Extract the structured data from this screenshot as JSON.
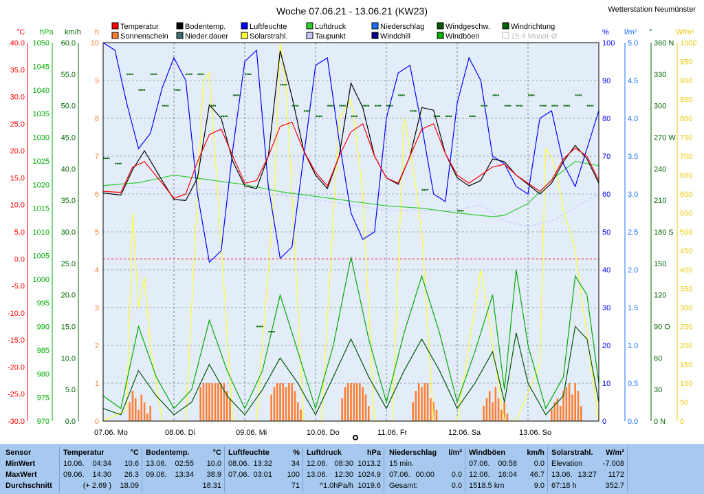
{
  "title": "Woche 07.06.21 - 13.06.21 (KW23)",
  "station": "Wetterstation Neumünster",
  "legend": [
    {
      "label": "Temperatur",
      "color": "#ff0000"
    },
    {
      "label": "Sonnenschein",
      "color": "#ff7f32"
    },
    {
      "label": "Bodentemp.",
      "color": "#000000"
    },
    {
      "label": "Nieder.dauer",
      "color": "#3b6b6b"
    },
    {
      "label": "Luftfeuchte",
      "color": "#0000ff"
    },
    {
      "label": "Solarstrahl.",
      "color": "#ffff33"
    },
    {
      "label": "Luftdruck",
      "color": "#33cc33"
    },
    {
      "label": "Taupunkt",
      "color": "#c8c8ff"
    },
    {
      "label": "Niederschlag",
      "color": "#1e6eff"
    },
    {
      "label": "Windchill",
      "color": "#00008b"
    },
    {
      "label": "Windgeschw.",
      "color": "#005500"
    },
    {
      "label": "Windböen",
      "color": "#00aa00"
    },
    {
      "label": "Windrichtung",
      "color": "#006600"
    },
    {
      "label": "15.4 Monat-Ø",
      "color": "#cccccc",
      "disabled": true
    }
  ],
  "axes": {
    "temp": {
      "unit": "°C",
      "color": "#ff0000",
      "ticks": [
        "40.0",
        "35.0",
        "30.0",
        "25.0",
        "20.0",
        "15.0",
        "10.0",
        "5.0",
        "0.0",
        "-5.0",
        "-10.0",
        "-15.0",
        "-20.0",
        "-25.0",
        "-30.0"
      ]
    },
    "hpa": {
      "unit": "hPa",
      "color": "#00aa00",
      "ticks": [
        "1050",
        "1045",
        "1040",
        "1035",
        "1030",
        "1025",
        "1020",
        "1015",
        "1010",
        "1005",
        "1000",
        "995",
        "990",
        "985",
        "980",
        "975",
        "970"
      ]
    },
    "kmh": {
      "unit": "km/h",
      "color": "#006600",
      "ticks": [
        "60.0",
        "55.0",
        "50.0",
        "45.0",
        "40.0",
        "35.0",
        "30.0",
        "25.0",
        "20.0",
        "15.0",
        "10.0",
        "5.0",
        "0.0"
      ]
    },
    "h": {
      "unit": "h",
      "color": "#ff7f32",
      "ticks": [
        "10",
        "9",
        "8",
        "7",
        "6",
        "5",
        "4",
        "3",
        "2",
        "1",
        "0"
      ]
    },
    "pct": {
      "unit": "%",
      "color": "#0000ff",
      "ticks": [
        "100",
        "90",
        "80",
        "70",
        "60",
        "50",
        "40",
        "30",
        "20",
        "10",
        "0"
      ]
    },
    "lm2": {
      "unit": "l/m²",
      "color": "#1e6eff",
      "ticks": [
        "5.0",
        "4.5",
        "4.0",
        "3.5",
        "3.0",
        "2.5",
        "2.0",
        "1.5",
        "1.0",
        "0.5",
        "0.0"
      ]
    },
    "deg": {
      "unit": "°",
      "color": "#006600",
      "ticks": [
        "360 N",
        "330",
        "300",
        "270 W",
        "240",
        "210",
        "180 S",
        "150",
        "120",
        "90 O",
        "60",
        "30",
        "0 N"
      ]
    },
    "wm2": {
      "unit": "W/m²",
      "color": "#e6c800",
      "ticks": [
        "1000",
        "950",
        "900",
        "850",
        "800",
        "750",
        "700",
        "650",
        "600",
        "550",
        "500",
        "450",
        "400",
        "350",
        "300",
        "250",
        "200",
        "150",
        "100",
        "50",
        "0"
      ]
    }
  },
  "x_labels": [
    "07.06. Mo",
    "08.06. Di",
    "09.06. Mi",
    "10.06. Do",
    "11.06. Fr",
    "12.06. Sa",
    "13.06. So"
  ],
  "chart_data": {
    "type": "line",
    "title": "Woche 07.06.21 - 13.06.21 (KW23)",
    "x_unit": "hours since 07.06. 00:00",
    "x_range": [
      0,
      168
    ],
    "series": [
      {
        "name": "Temperatur",
        "unit": "°C",
        "color": "#ff0000",
        "x": [
          0,
          6,
          10,
          14,
          20,
          24,
          28,
          32,
          36,
          40,
          44,
          48,
          52,
          56,
          60,
          64,
          68,
          72,
          76,
          80,
          84,
          88,
          92,
          96,
          100,
          104,
          108,
          112,
          116,
          120,
          124,
          128,
          132,
          136,
          140,
          144,
          148,
          152,
          156,
          160,
          164,
          168
        ],
        "y": [
          12.5,
          12.3,
          17,
          18,
          14,
          11.2,
          12,
          18,
          23,
          24,
          19,
          14,
          14.5,
          19,
          24.5,
          25.3,
          20,
          16,
          13.5,
          19,
          23.5,
          25,
          19,
          15,
          14,
          19,
          24,
          25,
          19.5,
          15.5,
          14,
          15.5,
          17,
          17.5,
          15.5,
          14,
          12.5,
          14.5,
          18.5,
          20.5,
          19,
          14.5
        ]
      },
      {
        "name": "Bodentemp.",
        "unit": "°C",
        "color": "#000000",
        "x": [
          0,
          6,
          10,
          14,
          20,
          24,
          28,
          32,
          36,
          40,
          44,
          48,
          52,
          56,
          60,
          64,
          68,
          72,
          76,
          80,
          84,
          88,
          92,
          96,
          100,
          104,
          108,
          112,
          116,
          120,
          124,
          128,
          132,
          136,
          140,
          144,
          148,
          152,
          156,
          160,
          164,
          168
        ],
        "y": [
          12.2,
          11.8,
          16.5,
          20,
          14.5,
          11,
          10.8,
          15,
          28.5,
          26,
          18,
          13.5,
          13,
          19,
          38.5,
          30,
          20,
          15.5,
          13,
          19,
          32.5,
          28,
          19,
          15,
          13.8,
          19,
          28,
          27.5,
          19.5,
          15,
          13.5,
          14.5,
          18.5,
          18,
          15.5,
          13.8,
          12,
          14,
          18,
          21,
          18.5,
          14
        ]
      },
      {
        "name": "Luftfeuchte",
        "unit": "%",
        "color": "#0000ff",
        "x": [
          0,
          4,
          8,
          12,
          16,
          20,
          24,
          28,
          32,
          36,
          40,
          44,
          48,
          52,
          56,
          60,
          64,
          68,
          72,
          76,
          80,
          84,
          88,
          92,
          96,
          100,
          104,
          108,
          112,
          116,
          120,
          124,
          128,
          132,
          136,
          140,
          144,
          148,
          152,
          156,
          160,
          164,
          168
        ],
        "y": [
          100,
          98,
          84,
          72,
          76,
          88,
          96,
          90,
          60,
          42,
          45,
          72,
          95,
          98,
          62,
          43,
          46,
          70,
          94,
          96,
          74,
          55,
          48,
          50,
          80,
          92,
          94,
          78,
          60,
          58,
          84,
          96,
          90,
          70,
          68,
          62,
          60,
          80,
          82,
          68,
          62,
          72,
          82
        ]
      },
      {
        "name": "Luftdruck",
        "unit": "hPa",
        "color": "#33cc33",
        "x": [
          0,
          12,
          24,
          36,
          48,
          60,
          72,
          84,
          96,
          108,
          120,
          132,
          136,
          144,
          152,
          160,
          168
        ],
        "y": [
          1019.8,
          1020.4,
          1022,
          1021,
          1020,
          1018.5,
          1017.5,
          1016.5,
          1015.5,
          1015,
          1014,
          1013.2,
          1013.5,
          1016,
          1021,
          1024.9,
          1024
        ]
      },
      {
        "name": "Taupunkt",
        "unit": "°C",
        "color": "#c8c8ff",
        "x": [
          0,
          24,
          48,
          72,
          96,
          120,
          128,
          136,
          144,
          152,
          168
        ],
        "y": [
          13.5,
          13,
          12.5,
          11,
          9,
          9,
          10,
          7,
          6,
          7,
          12
        ]
      },
      {
        "name": "Windgeschw.",
        "unit": "km/h",
        "color": "#005500",
        "x": [
          0,
          6,
          12,
          18,
          24,
          30,
          36,
          42,
          48,
          54,
          60,
          66,
          72,
          78,
          84,
          90,
          96,
          102,
          108,
          114,
          120,
          126,
          132,
          136,
          140,
          144,
          150,
          156,
          160,
          164,
          168
        ],
        "y": [
          2,
          1,
          8,
          4,
          1,
          3,
          9,
          4,
          1,
          5,
          10,
          6,
          1,
          7,
          13,
          7,
          2,
          8,
          13,
          8,
          2,
          6,
          11,
          3,
          14,
          6,
          1,
          4,
          15,
          13,
          3
        ]
      },
      {
        "name": "Windböen",
        "unit": "km/h",
        "color": "#00aa00",
        "x": [
          0,
          6,
          12,
          18,
          24,
          30,
          36,
          42,
          48,
          54,
          60,
          66,
          72,
          78,
          84,
          90,
          96,
          102,
          108,
          114,
          120,
          126,
          132,
          136,
          140,
          144,
          150,
          156,
          160,
          164,
          168
        ],
        "y": [
          4,
          2,
          15,
          7,
          2,
          5,
          16,
          8,
          2,
          8,
          20,
          11,
          2,
          12,
          26,
          13,
          3,
          14,
          23,
          14,
          3,
          11,
          20,
          5,
          24,
          12,
          2,
          7,
          23,
          20,
          6
        ]
      },
      {
        "name": "Solarstrahl.",
        "unit": "W/m²",
        "color": "#ffff33",
        "x": [
          0,
          8,
          10,
          12,
          14,
          16,
          20,
          28,
          34,
          36,
          38,
          44,
          52,
          58,
          60,
          62,
          64,
          68,
          74,
          80,
          84,
          86,
          88,
          92,
          98,
          102,
          104,
          106,
          108,
          112,
          120,
          126,
          128,
          130,
          132,
          136,
          140,
          148,
          150,
          152,
          154,
          156,
          160,
          168
        ],
        "y": [
          0,
          30,
          550,
          300,
          380,
          200,
          0,
          0,
          900,
          920,
          700,
          0,
          0,
          600,
          1000,
          880,
          600,
          0,
          0,
          800,
          850,
          740,
          600,
          0,
          0,
          800,
          720,
          620,
          500,
          0,
          0,
          300,
          400,
          310,
          200,
          0,
          0,
          150,
          720,
          700,
          640,
          560,
          450,
          0
        ]
      },
      {
        "name": "Windrichtung",
        "unit": "°",
        "color": "#006600",
        "style": "dots",
        "x": [
          0,
          4,
          8,
          12,
          16,
          20,
          24,
          28,
          32,
          36,
          40,
          44,
          48,
          52,
          56,
          60,
          64,
          68,
          72,
          76,
          80,
          84,
          88,
          92,
          96,
          100,
          104,
          108,
          112,
          116,
          120,
          124,
          128,
          132,
          136,
          140,
          144,
          148,
          152,
          156,
          160,
          164,
          168
        ],
        "y": [
          250,
          245,
          330,
          315,
          330,
          300,
          315,
          330,
          330,
          300,
          290,
          310,
          330,
          90,
          85,
          320,
          300,
          295,
          290,
          300,
          300,
          290,
          300,
          300,
          300,
          310,
          295,
          220,
          290,
          290,
          200,
          290,
          300,
          310,
          300,
          300,
          310,
          300,
          300,
          300,
          310,
          300,
          300
        ]
      },
      {
        "name": "Sonnenschein",
        "unit": "h",
        "color": "#ff7f32",
        "style": "bars",
        "x": [
          9,
          10,
          11,
          12,
          13,
          14,
          15,
          16,
          33,
          34,
          35,
          36,
          37,
          38,
          39,
          40,
          41,
          42,
          43,
          57,
          58,
          59,
          60,
          61,
          62,
          63,
          64,
          65,
          66,
          67,
          81,
          82,
          83,
          84,
          85,
          86,
          87,
          88,
          89,
          90,
          105,
          106,
          107,
          108,
          109,
          110,
          111,
          112,
          113,
          129,
          130,
          131,
          132,
          133,
          134,
          135,
          136,
          137,
          152,
          153,
          154,
          155,
          156,
          157,
          158,
          159,
          160,
          161,
          162
        ],
        "y": [
          0.5,
          0.8,
          0.6,
          0.3,
          0.7,
          0.5,
          0.2,
          0.4,
          0.9,
          1,
          1,
          1,
          1,
          1,
          1,
          1,
          1,
          0.8,
          0.6,
          0.7,
          0.9,
          1,
          1,
          1,
          0.9,
          1,
          1,
          0.8,
          0.5,
          0.3,
          0.6,
          0.9,
          1,
          1,
          1,
          1,
          1,
          0.9,
          0.7,
          0.4,
          0.5,
          0.8,
          1,
          0.9,
          1,
          1,
          0.6,
          0.5,
          0.3,
          0.4,
          0.6,
          0.8,
          0.5,
          0.9,
          0.6,
          0.3,
          0.5,
          0.2,
          0.3,
          0.5,
          0.6,
          0.4,
          0.8,
          0.9,
          1,
          0.7,
          1,
          0.8,
          0.4
        ]
      }
    ],
    "reference_line": {
      "value": 0,
      "unit": "°C",
      "color": "#ff0000",
      "style": "dashed"
    }
  },
  "stats": {
    "headers": [
      {
        "label": "Sensor",
        "unit": ""
      },
      {
        "label": "Temperatur",
        "unit": "°C"
      },
      {
        "label": "Bodentemp.",
        "unit": "°C"
      },
      {
        "label": "Luftfeuchte",
        "unit": "%"
      },
      {
        "label": "Luftdruck",
        "unit": "hPa"
      },
      {
        "label": "Niederschlag",
        "unit": "l/m²"
      },
      {
        "label": "Windböen",
        "unit": "km/h"
      },
      {
        "label": "Solarstrahl.",
        "unit": "W/m²"
      }
    ],
    "row_labels": [
      "MinWert",
      "MaxWert",
      "Durchschnitt"
    ],
    "columns": [
      {
        "rows": [
          [
            "10.06.",
            "04:34",
            "10.6"
          ],
          [
            "09.06.",
            "14:30",
            "26.3"
          ],
          [
            "",
            "(+ 2.69 )",
            "18.09"
          ]
        ]
      },
      {
        "rows": [
          [
            "13.06.",
            "02:55",
            "10.0"
          ],
          [
            "09.06.",
            "13:34",
            "38.9"
          ],
          [
            "",
            "",
            "18.31"
          ]
        ]
      },
      {
        "rows": [
          [
            "08.06.",
            "13:32",
            "34"
          ],
          [
            "07.06.",
            "03:01",
            "100"
          ],
          [
            "",
            "",
            "71"
          ]
        ]
      },
      {
        "rows": [
          [
            "12.06.",
            "08:30",
            "1013.2"
          ],
          [
            "13.06.",
            "12:30",
            "1024.9"
          ],
          [
            "",
            "^1.0hPa/h",
            "1019.6"
          ]
        ]
      },
      {
        "rows": [
          [
            "15 min.",
            "",
            ""
          ],
          [
            "07.06.",
            "00:00",
            "0.0"
          ],
          [
            "Gesamt:",
            "",
            "0.0"
          ]
        ]
      },
      {
        "rows": [
          [
            "07.06.",
            "00:58",
            "0.0"
          ],
          [
            "12.06.",
            "16:04",
            "46.7"
          ],
          [
            "1518.5 km",
            "",
            "9.0"
          ]
        ]
      },
      {
        "rows": [
          [
            "Elevation",
            "",
            "-7.008"
          ],
          [
            "13.06.",
            "13:27",
            "1172"
          ],
          [
            "67:18 h",
            "",
            "352.7"
          ]
        ]
      }
    ]
  }
}
